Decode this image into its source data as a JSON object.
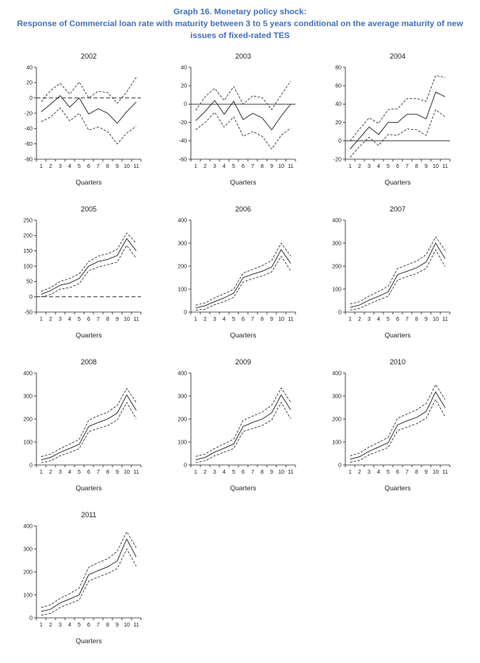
{
  "page": {
    "title_line1": "Graph 16. Monetary policy shock:",
    "title_line2": "Response of Commercial loan rate with maturity between 3 to 5 years conditional on the average maturity of new issues of fixed-rated TES",
    "title_color": "#3F6FB5",
    "line_color": "#2b2b2b"
  },
  "chart_data": [
    {
      "type": "line",
      "title": "2002",
      "xlabel": "Quarters",
      "x": [
        1,
        2,
        3,
        4,
        5,
        6,
        7,
        8,
        9,
        10,
        11
      ],
      "ylim": [
        -80,
        40
      ],
      "ytick_step": 20,
      "zero_line": "dashed",
      "series": [
        {
          "name": "upper-band",
          "style": "dashed",
          "values": [
            -5,
            10,
            19,
            5,
            21,
            0,
            9,
            7,
            -7,
            8,
            27
          ]
        },
        {
          "name": "response",
          "style": "solid",
          "values": [
            -18,
            -8,
            3,
            -12,
            0,
            -21,
            -14,
            -20,
            -33,
            -18,
            -5
          ]
        },
        {
          "name": "lower-band",
          "style": "dashed",
          "values": [
            -31,
            -25,
            -13,
            -30,
            -20,
            -42,
            -38,
            -44,
            -60,
            -46,
            -37
          ]
        }
      ]
    },
    {
      "type": "line",
      "title": "2003",
      "xlabel": "Quarters",
      "x": [
        1,
        2,
        3,
        4,
        5,
        6,
        7,
        8,
        9,
        10,
        11
      ],
      "ylim": [
        -60,
        40
      ],
      "ytick_step": 20,
      "zero_line": "solid",
      "series": [
        {
          "name": "upper-band",
          "style": "dashed",
          "values": [
            -7,
            8,
            17,
            4,
            19,
            0,
            9,
            7,
            -6,
            10,
            25
          ]
        },
        {
          "name": "response",
          "style": "solid",
          "values": [
            -18,
            -8,
            4,
            -11,
            3,
            -17,
            -10,
            -15,
            -28,
            -13,
            0
          ]
        },
        {
          "name": "lower-band",
          "style": "dashed",
          "values": [
            -28,
            -20,
            -9,
            -25,
            -14,
            -35,
            -30,
            -35,
            -49,
            -34,
            -26
          ]
        }
      ]
    },
    {
      "type": "line",
      "title": "2004",
      "xlabel": "Quarters",
      "x": [
        1,
        2,
        3,
        4,
        5,
        6,
        7,
        8,
        9,
        10,
        11
      ],
      "ylim": [
        -20,
        80
      ],
      "ytick_step": 20,
      "zero_line": "solid",
      "series": [
        {
          "name": "upper-band",
          "style": "dashed",
          "values": [
            0,
            13,
            25,
            19,
            34,
            35,
            46,
            46,
            43,
            71,
            69
          ]
        },
        {
          "name": "response",
          "style": "solid",
          "values": [
            -9,
            3,
            15,
            7,
            20,
            20,
            29,
            29,
            24,
            53,
            48
          ]
        },
        {
          "name": "lower-band",
          "style": "dashed",
          "values": [
            -18,
            -6,
            4,
            -5,
            7,
            6,
            13,
            12,
            6,
            34,
            26
          ]
        }
      ]
    },
    {
      "type": "line",
      "title": "2005",
      "xlabel": "Quarters",
      "x": [
        1,
        2,
        3,
        4,
        5,
        6,
        7,
        8,
        9,
        10,
        11
      ],
      "ylim": [
        -50,
        250
      ],
      "ytick_step": 50,
      "zero_line": "dashed",
      "series": [
        {
          "name": "upper-band",
          "style": "dashed",
          "values": [
            18,
            30,
            50,
            60,
            75,
            115,
            133,
            140,
            155,
            208,
            175
          ]
        },
        {
          "name": "response",
          "style": "solid",
          "values": [
            8,
            20,
            38,
            45,
            60,
            100,
            115,
            122,
            135,
            190,
            150
          ]
        },
        {
          "name": "lower-band",
          "style": "dashed",
          "values": [
            0,
            8,
            25,
            30,
            43,
            85,
            97,
            105,
            113,
            168,
            125
          ]
        }
      ]
    },
    {
      "type": "line",
      "title": "2006",
      "xlabel": "Quarters",
      "x": [
        1,
        2,
        3,
        4,
        5,
        6,
        7,
        8,
        9,
        10,
        11
      ],
      "ylim": [
        0,
        400
      ],
      "ytick_step": 100,
      "zero_line": "none",
      "series": [
        {
          "name": "upper-band",
          "style": "dashed",
          "values": [
            30,
            40,
            62,
            80,
            100,
            170,
            186,
            202,
            225,
            300,
            245
          ]
        },
        {
          "name": "response",
          "style": "solid",
          "values": [
            18,
            28,
            46,
            62,
            82,
            150,
            165,
            178,
            196,
            272,
            212
          ]
        },
        {
          "name": "lower-band",
          "style": "dashed",
          "values": [
            8,
            13,
            32,
            46,
            65,
            131,
            146,
            157,
            175,
            243,
            180
          ]
        }
      ]
    },
    {
      "type": "line",
      "title": "2007",
      "xlabel": "Quarters",
      "x": [
        1,
        2,
        3,
        4,
        5,
        6,
        7,
        8,
        9,
        10,
        11
      ],
      "ylim": [
        0,
        400
      ],
      "ytick_step": 100,
      "zero_line": "none",
      "series": [
        {
          "name": "upper-band",
          "style": "dashed",
          "values": [
            35,
            46,
            70,
            90,
            112,
            190,
            206,
            222,
            250,
            328,
            268
          ]
        },
        {
          "name": "response",
          "style": "solid",
          "values": [
            20,
            31,
            52,
            69,
            88,
            163,
            178,
            193,
            218,
            300,
            232
          ]
        },
        {
          "name": "lower-band",
          "style": "dashed",
          "values": [
            9,
            16,
            36,
            52,
            69,
            140,
            155,
            168,
            190,
            271,
            198
          ]
        }
      ]
    },
    {
      "type": "line",
      "title": "2008",
      "xlabel": "Quarters",
      "x": [
        1,
        2,
        3,
        4,
        5,
        6,
        7,
        8,
        9,
        10,
        11
      ],
      "ylim": [
        0,
        400
      ],
      "ytick_step": 100,
      "zero_line": "none",
      "series": [
        {
          "name": "upper-band",
          "style": "dashed",
          "values": [
            36,
            48,
            71,
            91,
            111,
            195,
            214,
            230,
            259,
            333,
            272
          ]
        },
        {
          "name": "response",
          "style": "solid",
          "values": [
            22,
            33,
            55,
            72,
            90,
            168,
            185,
            200,
            226,
            305,
            238
          ]
        },
        {
          "name": "lower-band",
          "style": "dashed",
          "values": [
            10,
            18,
            40,
            55,
            71,
            145,
            159,
            172,
            196,
            272,
            201
          ]
        }
      ]
    },
    {
      "type": "line",
      "title": "2009",
      "xlabel": "Quarters",
      "x": [
        1,
        2,
        3,
        4,
        5,
        6,
        7,
        8,
        9,
        10,
        11
      ],
      "ylim": [
        0,
        400
      ],
      "ytick_step": 100,
      "zero_line": "none",
      "series": [
        {
          "name": "upper-band",
          "style": "dashed",
          "values": [
            37,
            48,
            72,
            92,
            112,
            194,
            213,
            230,
            260,
            335,
            273
          ]
        },
        {
          "name": "response",
          "style": "solid",
          "values": [
            22,
            33,
            56,
            73,
            91,
            168,
            185,
            200,
            227,
            305,
            240
          ]
        },
        {
          "name": "lower-band",
          "style": "dashed",
          "values": [
            10,
            18,
            40,
            56,
            71,
            146,
            159,
            172,
            196,
            273,
            201
          ]
        }
      ]
    },
    {
      "type": "line",
      "title": "2010",
      "xlabel": "Quarters",
      "x": [
        1,
        2,
        3,
        4,
        5,
        6,
        7,
        8,
        9,
        10,
        11
      ],
      "ylim": [
        0,
        400
      ],
      "ytick_step": 100,
      "zero_line": "none",
      "series": [
        {
          "name": "upper-band",
          "style": "dashed",
          "values": [
            40,
            52,
            78,
            98,
            120,
            203,
            222,
            240,
            268,
            350,
            285
          ]
        },
        {
          "name": "response",
          "style": "solid",
          "values": [
            25,
            36,
            60,
            78,
            97,
            175,
            192,
            207,
            233,
            318,
            250
          ]
        },
        {
          "name": "lower-band",
          "style": "dashed",
          "values": [
            12,
            20,
            44,
            60,
            76,
            150,
            165,
            180,
            203,
            285,
            210
          ]
        }
      ]
    },
    {
      "type": "line",
      "title": "2011",
      "xlabel": "Quarters",
      "x": [
        1,
        2,
        3,
        4,
        5,
        6,
        7,
        8,
        9,
        10,
        11
      ],
      "ylim": [
        0,
        400
      ],
      "ytick_step": 100,
      "zero_line": "none",
      "series": [
        {
          "name": "upper-band",
          "style": "dashed",
          "values": [
            45,
            57,
            85,
            105,
            130,
            220,
            240,
            257,
            290,
            375,
            305
          ]
        },
        {
          "name": "response",
          "style": "solid",
          "values": [
            28,
            38,
            65,
            82,
            100,
            188,
            206,
            222,
            248,
            343,
            265
          ]
        },
        {
          "name": "lower-band",
          "style": "dashed",
          "values": [
            12,
            20,
            45,
            62,
            78,
            160,
            178,
            193,
            215,
            300,
            225
          ]
        }
      ]
    }
  ]
}
